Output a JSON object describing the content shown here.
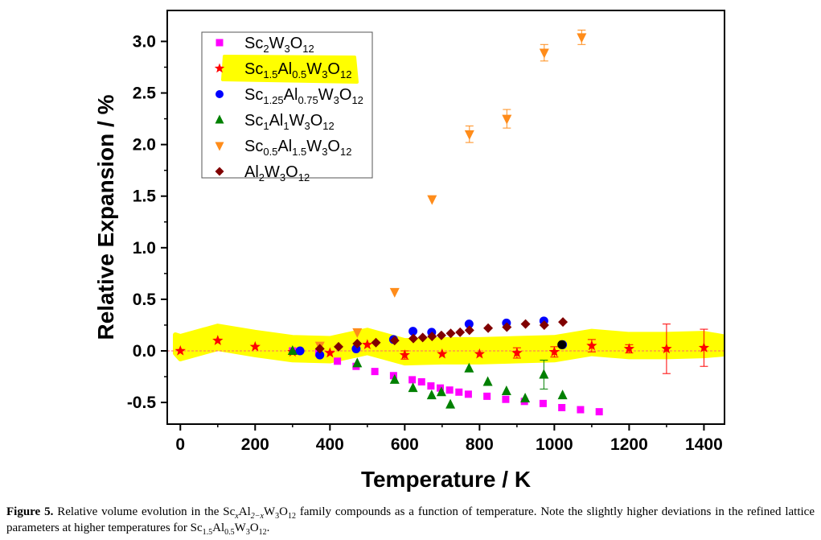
{
  "chart_data": {
    "type": "scatter",
    "title": "",
    "xlabel": "Temperature / K",
    "ylabel": "Relative Expansion / %",
    "xlim": [
      -35,
      1455
    ],
    "ylim": [
      -0.71,
      3.3
    ],
    "xticks": [
      "0",
      "200",
      "400",
      "600",
      "800",
      "1000",
      "1200",
      "1400"
    ],
    "yticks": [
      "-0.5",
      "0.0",
      "0.5",
      "1.0",
      "1.5",
      "2.0",
      "2.5",
      "3.0"
    ],
    "reference_line_y": 0,
    "grid": false,
    "legend_position": "top-left",
    "highlight_color": "#ffff00",
    "series": [
      {
        "key": "sc2",
        "name": "Sc2W3O12",
        "legend": {
          "parts": [
            [
              "Sc",
              ""
            ],
            [
              "2",
              "sub"
            ],
            [
              "W",
              ""
            ],
            [
              "3",
              "sub"
            ],
            [
              "O",
              ""
            ],
            [
              "12",
              "sub"
            ]
          ]
        },
        "marker": "square",
        "color": "#ff00ff",
        "points": [
          [
            300,
            0.0
          ],
          [
            370,
            -0.02
          ],
          [
            420,
            -0.1
          ],
          [
            470,
            -0.15
          ],
          [
            520,
            -0.2
          ],
          [
            570,
            -0.24
          ],
          [
            620,
            -0.28
          ],
          [
            645,
            -0.3
          ],
          [
            670,
            -0.34
          ],
          [
            695,
            -0.36
          ],
          [
            720,
            -0.38
          ],
          [
            745,
            -0.4
          ],
          [
            770,
            -0.42
          ],
          [
            820,
            -0.44
          ],
          [
            870,
            -0.47
          ],
          [
            920,
            -0.49
          ],
          [
            970,
            -0.51
          ],
          [
            1020,
            -0.55
          ],
          [
            1070,
            -0.57
          ],
          [
            1120,
            -0.59
          ]
        ]
      },
      {
        "key": "sc15",
        "name": "Sc1.5Al0.5W3O12",
        "legend": {
          "parts": [
            [
              "Sc",
              ""
            ],
            [
              "1.5",
              "sub"
            ],
            [
              "Al",
              ""
            ],
            [
              "0.5",
              "sub"
            ],
            [
              "W",
              ""
            ],
            [
              "3",
              "sub"
            ],
            [
              "O",
              ""
            ],
            [
              "12",
              "sub"
            ]
          ]
        },
        "marker": "star",
        "color": "#ff0000",
        "highlighted": true,
        "points": [
          [
            0,
            0.0
          ],
          [
            100,
            0.1
          ],
          [
            200,
            0.04
          ],
          [
            300,
            -0.01
          ],
          [
            400,
            -0.02
          ],
          [
            500,
            0.06
          ],
          [
            600,
            -0.04
          ],
          [
            700,
            -0.03
          ],
          [
            800,
            -0.03
          ],
          [
            900,
            -0.02
          ],
          [
            1000,
            -0.01
          ],
          [
            1100,
            0.05
          ],
          [
            1200,
            0.02
          ],
          [
            1300,
            0.02
          ],
          [
            1400,
            0.03
          ]
        ],
        "error": [
          0,
          0,
          0,
          0,
          0,
          0,
          0.04,
          0,
          0,
          0.05,
          0.05,
          0.06,
          0.04,
          0.24,
          0.18
        ]
      },
      {
        "key": "sc125",
        "name": "Sc1.25Al0.75W3O12",
        "legend": {
          "parts": [
            [
              "Sc",
              ""
            ],
            [
              "1.25",
              "sub"
            ],
            [
              "Al",
              ""
            ],
            [
              "0.75",
              "sub"
            ],
            [
              "W",
              ""
            ],
            [
              "3",
              "sub"
            ],
            [
              "O",
              ""
            ],
            [
              "12",
              "sub"
            ]
          ]
        },
        "marker": "circle",
        "color": "#0000ff",
        "points": [
          [
            320,
            0.0
          ],
          [
            373,
            -0.04
          ],
          [
            470,
            0.02
          ],
          [
            570,
            0.11
          ],
          [
            622,
            0.19
          ],
          [
            672,
            0.18
          ],
          [
            772,
            0.26
          ],
          [
            872,
            0.27
          ],
          [
            972,
            0.29
          ],
          [
            1022,
            0.06
          ]
        ]
      },
      {
        "key": "sc1",
        "name": "Sc1Al1W3O12",
        "legend": {
          "parts": [
            [
              "Sc",
              ""
            ],
            [
              "1",
              "sub"
            ],
            [
              "Al",
              ""
            ],
            [
              "1",
              "sub"
            ],
            [
              "W",
              ""
            ],
            [
              "3",
              "sub"
            ],
            [
              "O",
              ""
            ],
            [
              "12",
              "sub"
            ]
          ]
        },
        "marker": "triangle-up",
        "color": "#008000",
        "points": [
          [
            300,
            0.0
          ],
          [
            473,
            -0.12
          ],
          [
            573,
            -0.28
          ],
          [
            622,
            -0.36
          ],
          [
            672,
            -0.43
          ],
          [
            698,
            -0.4
          ],
          [
            722,
            -0.52
          ],
          [
            772,
            -0.17
          ],
          [
            822,
            -0.3
          ],
          [
            872,
            -0.39
          ],
          [
            922,
            -0.46
          ],
          [
            972,
            -0.23
          ],
          [
            1022,
            -0.43
          ]
        ],
        "error": [
          0,
          0,
          0,
          0,
          0,
          0,
          0,
          0,
          0,
          0,
          0,
          0.14,
          0
        ]
      },
      {
        "key": "sc05",
        "name": "Sc0.5Al1.5W3O12",
        "legend": {
          "parts": [
            [
              "Sc",
              ""
            ],
            [
              "0.5",
              "sub"
            ],
            [
              "Al",
              ""
            ],
            [
              "1.5",
              "sub"
            ],
            [
              "W",
              ""
            ],
            [
              "3",
              "sub"
            ],
            [
              "O",
              ""
            ],
            [
              "12",
              "sub"
            ]
          ]
        },
        "marker": "triangle-down",
        "color": "#ff8c1a",
        "points": [
          [
            373,
            0.05
          ],
          [
            473,
            0.18
          ],
          [
            573,
            0.57
          ],
          [
            673,
            1.47
          ],
          [
            773,
            2.1
          ],
          [
            873,
            2.25
          ],
          [
            973,
            2.89
          ],
          [
            1073,
            3.04
          ]
        ],
        "error": [
          0,
          0,
          0,
          0,
          0.08,
          0.09,
          0.08,
          0.07
        ]
      },
      {
        "key": "al2",
        "name": "Al2W3O12",
        "legend": {
          "parts": [
            [
              "Al",
              ""
            ],
            [
              "2",
              "sub"
            ],
            [
              "W",
              ""
            ],
            [
              "3",
              "sub"
            ],
            [
              "O",
              ""
            ],
            [
              "12",
              "sub"
            ]
          ]
        },
        "marker": "diamond",
        "color": "#800000",
        "points": [
          [
            373,
            0.02
          ],
          [
            423,
            0.04
          ],
          [
            473,
            0.07
          ],
          [
            523,
            0.08
          ],
          [
            573,
            0.1
          ],
          [
            623,
            0.12
          ],
          [
            648,
            0.13
          ],
          [
            673,
            0.14
          ],
          [
            698,
            0.15
          ],
          [
            723,
            0.17
          ],
          [
            748,
            0.18
          ],
          [
            773,
            0.2
          ],
          [
            823,
            0.22
          ],
          [
            873,
            0.23
          ],
          [
            923,
            0.26
          ],
          [
            973,
            0.25
          ],
          [
            1023,
            0.28
          ]
        ]
      }
    ],
    "annotations": [
      {
        "type": "point",
        "x": 1020,
        "y": 0.06,
        "color": "#000000"
      }
    ]
  },
  "caption": {
    "label": "Figure 5.",
    "before_formula": " Relative volume evolution in the ",
    "formula_family": [
      [
        "Sc",
        ""
      ],
      [
        "x",
        "sub-i"
      ],
      [
        "Al",
        ""
      ],
      [
        "2−x",
        "sub-i"
      ],
      [
        "W",
        ""
      ],
      [
        "3",
        "sub"
      ],
      [
        "O",
        ""
      ],
      [
        "12",
        "sub"
      ]
    ],
    "middle": " family compounds as a function of temperature. Note the slightly higher deviations in the refined lattice parameters at higher temperatures for ",
    "formula_sample": [
      [
        "Sc",
        ""
      ],
      [
        "1.5",
        "sub"
      ],
      [
        "Al",
        ""
      ],
      [
        "0.5",
        "sub"
      ],
      [
        "W",
        ""
      ],
      [
        "3",
        "sub"
      ],
      [
        "O",
        ""
      ],
      [
        "12",
        "sub"
      ]
    ],
    "end": "."
  }
}
